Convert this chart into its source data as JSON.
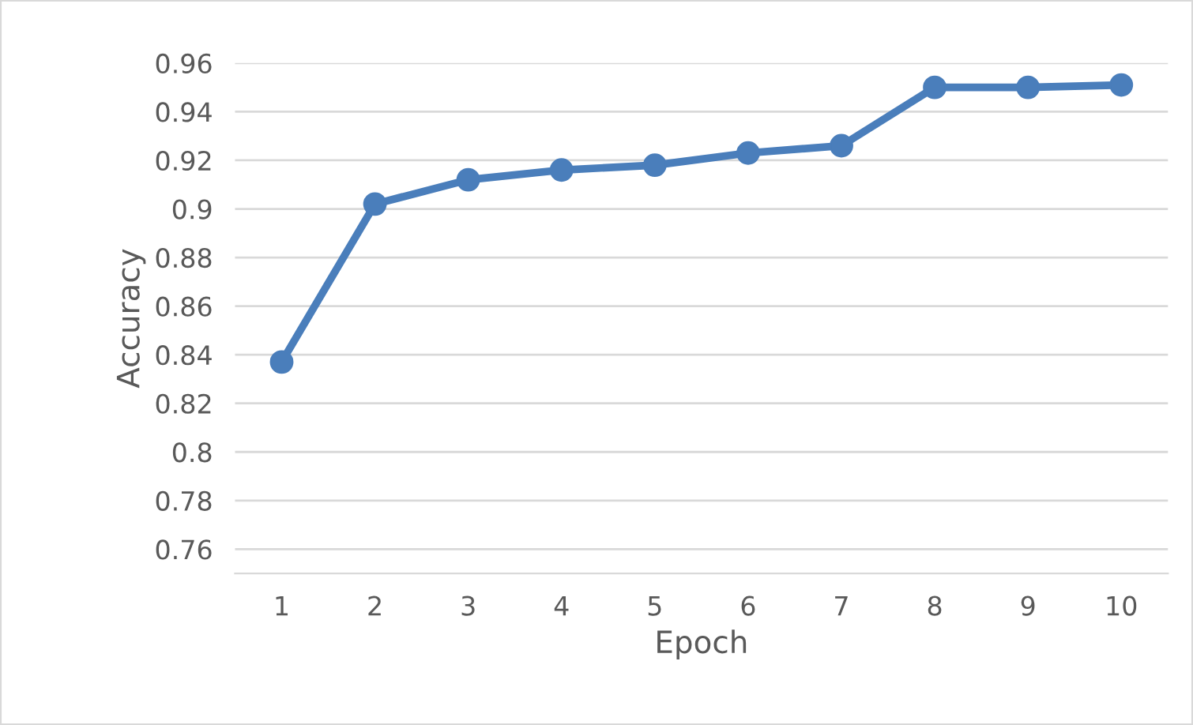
{
  "chart_data": {
    "type": "line",
    "xlabel": "Epoch",
    "ylabel": "Accuracy",
    "categories": [
      "1",
      "2",
      "3",
      "4",
      "5",
      "6",
      "7",
      "8",
      "9",
      "10"
    ],
    "series": [
      {
        "color": "#4a7ebb",
        "values": [
          0.837,
          0.902,
          0.912,
          0.916,
          0.918,
          0.923,
          0.926,
          0.95,
          0.95,
          0.951
        ]
      }
    ],
    "ylim": [
      0.75,
      0.96
    ],
    "yticks": [
      {
        "value": 0.76,
        "label": "0.76"
      },
      {
        "value": 0.78,
        "label": "0.78"
      },
      {
        "value": 0.8,
        "label": "0.8"
      },
      {
        "value": 0.82,
        "label": "0.82"
      },
      {
        "value": 0.84,
        "label": "0.84"
      },
      {
        "value": 0.86,
        "label": "0.86"
      },
      {
        "value": 0.88,
        "label": "0.88"
      },
      {
        "value": 0.9,
        "label": "0.9"
      },
      {
        "value": 0.92,
        "label": "0.92"
      },
      {
        "value": 0.94,
        "label": "0.94"
      },
      {
        "value": 0.96,
        "label": "0.96"
      }
    ],
    "grid": "y",
    "marker": "circle",
    "line_style": "solid"
  }
}
